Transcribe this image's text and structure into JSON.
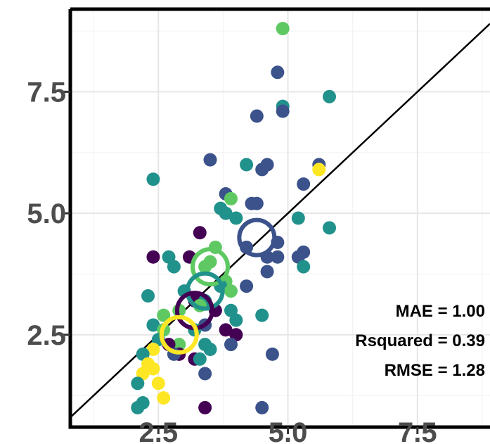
{
  "chart_data": {
    "type": "scatter",
    "title": "",
    "xlabel": "",
    "ylabel": "",
    "xlim": [
      0.8,
      8.9
    ],
    "ylim": [
      0.6,
      9.2
    ],
    "x_ticks": [
      "2.5",
      "5.0",
      "7.5"
    ],
    "y_ticks": [
      "2.5",
      "5.0",
      "7.5"
    ],
    "grid": true,
    "legend": "none",
    "reference_line": "identity (y = x)",
    "colors": {
      "purple": "#440154",
      "indigo": "#3b528b",
      "teal": "#21918c",
      "green": "#5ec962",
      "yellow": "#fde725"
    },
    "points": [
      {
        "x": 4.9,
        "y": 8.8,
        "color": "green"
      },
      {
        "x": 4.8,
        "y": 7.9,
        "color": "indigo"
      },
      {
        "x": 5.8,
        "y": 7.4,
        "color": "teal"
      },
      {
        "x": 4.9,
        "y": 7.2,
        "color": "teal"
      },
      {
        "x": 4.9,
        "y": 7.1,
        "color": "indigo"
      },
      {
        "x": 4.4,
        "y": 7.0,
        "color": "indigo"
      },
      {
        "x": 3.5,
        "y": 6.1,
        "color": "indigo"
      },
      {
        "x": 5.6,
        "y": 6.0,
        "color": "indigo"
      },
      {
        "x": 4.2,
        "y": 6.0,
        "color": "teal"
      },
      {
        "x": 4.6,
        "y": 6.0,
        "color": "indigo"
      },
      {
        "x": 4.5,
        "y": 5.9,
        "color": "indigo"
      },
      {
        "x": 5.6,
        "y": 5.9,
        "color": "yellow"
      },
      {
        "x": 2.4,
        "y": 5.7,
        "color": "teal"
      },
      {
        "x": 5.3,
        "y": 5.6,
        "color": "indigo"
      },
      {
        "x": 3.8,
        "y": 5.4,
        "color": "indigo"
      },
      {
        "x": 3.9,
        "y": 5.3,
        "color": "green"
      },
      {
        "x": 4.4,
        "y": 5.2,
        "color": "indigo"
      },
      {
        "x": 4.3,
        "y": 5.2,
        "color": "indigo"
      },
      {
        "x": 3.7,
        "y": 5.1,
        "color": "teal"
      },
      {
        "x": 3.8,
        "y": 5.0,
        "color": "teal"
      },
      {
        "x": 5.2,
        "y": 4.9,
        "color": "teal"
      },
      {
        "x": 4.0,
        "y": 4.9,
        "color": "teal"
      },
      {
        "x": 5.8,
        "y": 4.7,
        "color": "teal"
      },
      {
        "x": 3.3,
        "y": 4.6,
        "color": "purple"
      },
      {
        "x": 4.8,
        "y": 4.4,
        "color": "indigo"
      },
      {
        "x": 3.6,
        "y": 4.3,
        "color": "green"
      },
      {
        "x": 4.2,
        "y": 4.3,
        "color": "indigo"
      },
      {
        "x": 5.3,
        "y": 4.2,
        "color": "indigo"
      },
      {
        "x": 5.2,
        "y": 4.1,
        "color": "indigo"
      },
      {
        "x": 4.8,
        "y": 4.1,
        "color": "indigo"
      },
      {
        "x": 4.6,
        "y": 4.1,
        "color": "indigo"
      },
      {
        "x": 2.7,
        "y": 4.1,
        "color": "teal"
      },
      {
        "x": 2.4,
        "y": 4.1,
        "color": "purple"
      },
      {
        "x": 3.1,
        "y": 4.1,
        "color": "purple"
      },
      {
        "x": 3.5,
        "y": 4.0,
        "color": "green"
      },
      {
        "x": 2.8,
        "y": 3.9,
        "color": "teal"
      },
      {
        "x": 3.4,
        "y": 3.9,
        "color": "green"
      },
      {
        "x": 5.3,
        "y": 3.9,
        "color": "teal"
      },
      {
        "x": 4.6,
        "y": 3.8,
        "color": "indigo"
      },
      {
        "x": 3.8,
        "y": 3.6,
        "color": "green"
      },
      {
        "x": 4.2,
        "y": 3.5,
        "color": "indigo"
      },
      {
        "x": 3.7,
        "y": 3.5,
        "color": "teal"
      },
      {
        "x": 3.9,
        "y": 3.4,
        "color": "green"
      },
      {
        "x": 3.0,
        "y": 3.4,
        "color": "teal"
      },
      {
        "x": 2.3,
        "y": 3.3,
        "color": "teal"
      },
      {
        "x": 3.2,
        "y": 3.2,
        "color": "purple"
      },
      {
        "x": 3.4,
        "y": 3.2,
        "color": "teal"
      },
      {
        "x": 3.3,
        "y": 3.1,
        "color": "green"
      },
      {
        "x": 2.9,
        "y": 3.0,
        "color": "green"
      },
      {
        "x": 3.6,
        "y": 3.0,
        "color": "purple"
      },
      {
        "x": 3.9,
        "y": 3.0,
        "color": "teal"
      },
      {
        "x": 4.5,
        "y": 2.9,
        "color": "teal"
      },
      {
        "x": 2.6,
        "y": 2.9,
        "color": "green"
      },
      {
        "x": 3.4,
        "y": 2.7,
        "color": "indigo"
      },
      {
        "x": 4.0,
        "y": 2.8,
        "color": "teal"
      },
      {
        "x": 2.4,
        "y": 2.7,
        "color": "teal"
      },
      {
        "x": 2.6,
        "y": 2.6,
        "color": "green"
      },
      {
        "x": 3.2,
        "y": 2.6,
        "color": "teal"
      },
      {
        "x": 3.8,
        "y": 2.6,
        "color": "purple"
      },
      {
        "x": 4.0,
        "y": 2.5,
        "color": "purple"
      },
      {
        "x": 2.5,
        "y": 2.4,
        "color": "teal"
      },
      {
        "x": 2.9,
        "y": 2.3,
        "color": "green"
      },
      {
        "x": 3.4,
        "y": 2.3,
        "color": "teal"
      },
      {
        "x": 3.9,
        "y": 2.3,
        "color": "indigo"
      },
      {
        "x": 2.7,
        "y": 2.3,
        "color": "purple"
      },
      {
        "x": 3.5,
        "y": 2.2,
        "color": "teal"
      },
      {
        "x": 2.4,
        "y": 2.2,
        "color": "yellow"
      },
      {
        "x": 2.2,
        "y": 2.1,
        "color": "teal"
      },
      {
        "x": 4.7,
        "y": 2.1,
        "color": "indigo"
      },
      {
        "x": 2.9,
        "y": 2.1,
        "color": "purple"
      },
      {
        "x": 2.8,
        "y": 2.1,
        "color": "indigo"
      },
      {
        "x": 3.2,
        "y": 2.0,
        "color": "purple"
      },
      {
        "x": 3.3,
        "y": 2.0,
        "color": "teal"
      },
      {
        "x": 2.3,
        "y": 1.9,
        "color": "yellow"
      },
      {
        "x": 2.4,
        "y": 1.8,
        "color": "yellow"
      },
      {
        "x": 3.4,
        "y": 1.7,
        "color": "indigo"
      },
      {
        "x": 2.2,
        "y": 1.7,
        "color": "yellow"
      },
      {
        "x": 2.1,
        "y": 1.5,
        "color": "teal"
      },
      {
        "x": 2.5,
        "y": 1.5,
        "color": "yellow"
      },
      {
        "x": 2.6,
        "y": 1.2,
        "color": "yellow"
      },
      {
        "x": 2.2,
        "y": 1.1,
        "color": "teal"
      },
      {
        "x": 2.1,
        "y": 1.0,
        "color": "teal"
      },
      {
        "x": 3.4,
        "y": 1.0,
        "color": "purple"
      },
      {
        "x": 4.5,
        "y": 1.0,
        "color": "indigo"
      }
    ],
    "group_means": [
      {
        "x": 4.4,
        "y": 4.5,
        "color": "indigo"
      },
      {
        "x": 3.5,
        "y": 3.9,
        "color": "green"
      },
      {
        "x": 3.4,
        "y": 3.4,
        "color": "teal"
      },
      {
        "x": 3.2,
        "y": 3.0,
        "color": "purple"
      },
      {
        "x": 2.9,
        "y": 2.5,
        "color": "yellow"
      }
    ],
    "annotations": [
      "MAE = 1.00",
      "Rsquared = 0.39",
      "RMSE = 1.28"
    ]
  }
}
